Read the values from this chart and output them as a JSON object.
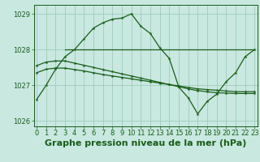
{
  "title": "Graphe pression niveau de la mer (hPa)",
  "background_color": "#c8e8e0",
  "grid_color": "#a0ccbb",
  "line_color": "#1a5c1a",
  "line1": {
    "x": [
      0,
      1,
      2,
      3,
      4,
      5,
      6,
      7,
      8,
      9,
      10,
      11,
      12,
      13,
      14,
      15,
      16,
      17,
      18,
      19,
      20,
      21,
      22,
      23
    ],
    "y": [
      1027.35,
      1027.45,
      1027.48,
      1027.48,
      1027.44,
      1027.4,
      1027.35,
      1027.3,
      1027.26,
      1027.22,
      1027.18,
      1027.14,
      1027.1,
      1027.06,
      1027.02,
      1026.98,
      1026.94,
      1026.9,
      1026.88,
      1026.86,
      1026.84,
      1026.82,
      1026.82,
      1026.82
    ]
  },
  "line2": {
    "x": [
      0,
      1,
      2,
      3,
      4,
      5,
      6,
      7,
      8,
      9,
      10,
      11,
      12,
      13,
      14,
      15,
      16,
      17,
      18,
      19,
      20,
      21,
      22,
      23
    ],
    "y": [
      1027.55,
      1027.65,
      1027.68,
      1027.68,
      1027.62,
      1027.56,
      1027.5,
      1027.44,
      1027.38,
      1027.32,
      1027.26,
      1027.2,
      1027.14,
      1027.08,
      1027.02,
      1026.96,
      1026.9,
      1026.85,
      1026.82,
      1026.79,
      1026.78,
      1026.77,
      1026.77,
      1026.77
    ]
  },
  "line3": {
    "x": [
      0,
      1,
      2,
      3,
      4,
      5,
      6,
      7,
      8,
      9,
      10,
      11,
      12,
      13,
      14,
      15,
      16,
      17,
      18,
      19,
      20,
      21,
      22,
      23
    ],
    "y": [
      1026.6,
      1027.0,
      1027.45,
      1027.8,
      1028.0,
      1028.3,
      1028.6,
      1028.75,
      1028.85,
      1028.88,
      1029.0,
      1028.65,
      1028.45,
      1028.05,
      1027.75,
      1026.95,
      1026.65,
      1026.2,
      1026.55,
      1026.75,
      1027.1,
      1027.35,
      1027.8,
      1028.0
    ]
  },
  "line4": {
    "x": [
      3,
      23
    ],
    "y": [
      1028.0,
      1028.0
    ]
  },
  "ylim": [
    1025.85,
    1029.25
  ],
  "xlim": [
    -0.3,
    23.3
  ],
  "yticks": [
    1026,
    1027,
    1028,
    1029
  ],
  "xticks": [
    0,
    1,
    2,
    3,
    4,
    5,
    6,
    7,
    8,
    9,
    10,
    11,
    12,
    13,
    14,
    15,
    16,
    17,
    18,
    19,
    20,
    21,
    22,
    23
  ],
  "title_fontsize": 8,
  "tick_fontsize": 6
}
